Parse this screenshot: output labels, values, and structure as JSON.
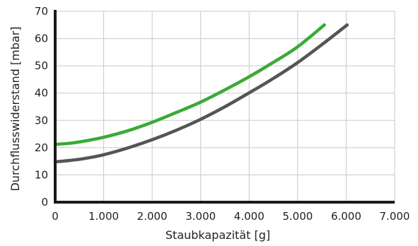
{
  "chart_data": {
    "type": "line",
    "title": "",
    "xlabel": "Staubkapazität [g]",
    "ylabel": "Durchflusswiderstand [mbar]",
    "xlim": [
      0,
      7000
    ],
    "ylim": [
      0,
      70
    ],
    "x_ticks": [
      0,
      1000,
      2000,
      3000,
      4000,
      5000,
      6000,
      7000
    ],
    "x_tick_labels": [
      "0",
      "1.000",
      "2.000",
      "3.000",
      "4.000",
      "5.000",
      "6.000",
      "7.000"
    ],
    "y_ticks": [
      0,
      10,
      20,
      30,
      40,
      50,
      60,
      70
    ],
    "y_tick_labels": [
      "0",
      "10",
      "20",
      "30",
      "40",
      "50",
      "60",
      "70"
    ],
    "grid": true,
    "legend": "none",
    "series": [
      {
        "color": "#3aaa35",
        "x": [
          0,
          300,
          600,
          1000,
          1500,
          2000,
          2500,
          3000,
          3500,
          4000,
          4500,
          5000,
          5550
        ],
        "y": [
          21.2,
          21.6,
          22.4,
          23.8,
          26.2,
          29.3,
          32.9,
          36.7,
          41.2,
          46.0,
          51.3,
          57.0,
          65.0
        ]
      },
      {
        "color": "#555555",
        "x": [
          0,
          300,
          600,
          1000,
          1500,
          2000,
          2500,
          3000,
          3500,
          4000,
          4500,
          5000,
          5500,
          6020
        ],
        "y": [
          14.8,
          15.3,
          16.0,
          17.4,
          19.9,
          22.9,
          26.4,
          30.4,
          35.0,
          40.1,
          45.4,
          51.2,
          57.8,
          65.0
        ]
      }
    ]
  }
}
